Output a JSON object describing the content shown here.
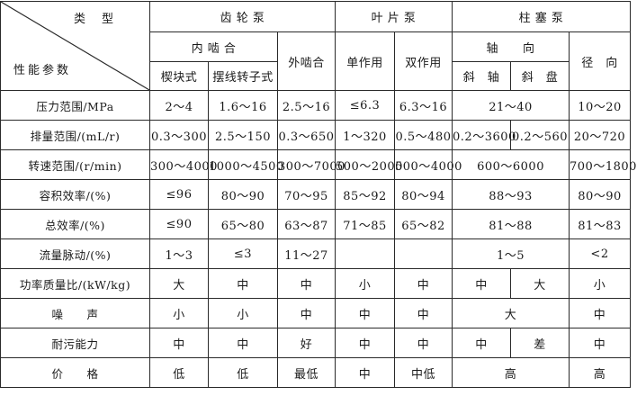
{
  "header": {
    "corner_top": "类型",
    "corner_bottom": "性能参数",
    "groups": [
      "齿 轮 泵",
      "叶 片 泵",
      "柱 塞 泵"
    ],
    "sub": {
      "internal": "内 啮 合",
      "external": "外啮合",
      "single": "单作用",
      "double": "双作用",
      "axial": "轴　　向",
      "radial": "径　向",
      "wedge": "楔块式",
      "cycloid": "摆线转子式",
      "bent_axis": "斜　轴",
      "swash_plate": "斜　盘"
    }
  },
  "rows": [
    {
      "label": "压力范围/MPa",
      "cells": [
        {
          "t": "2～4"
        },
        {
          "t": "1.6～16"
        },
        {
          "t": "2.5～16"
        },
        {
          "t": "≤6.3"
        },
        {
          "t": "6.3～16"
        },
        {
          "t": "21～40",
          "span": 2
        },
        {
          "t": "10～20"
        }
      ]
    },
    {
      "label": "排量范围/(mL/r)",
      "cells": [
        {
          "t": "0.3～300"
        },
        {
          "t": "2.5～150"
        },
        {
          "t": "0.3～650"
        },
        {
          "t": "1～320"
        },
        {
          "t": "0.5～480"
        },
        {
          "t": "0.2～3600"
        },
        {
          "t": "0.2～560"
        },
        {
          "t": "20～720"
        }
      ]
    },
    {
      "label": "转速范围/(r/min)",
      "cells": [
        {
          "t": "300～4000"
        },
        {
          "t": "1000～4500"
        },
        {
          "t": "300～7000"
        },
        {
          "t": "500～2000"
        },
        {
          "t": "500～4000"
        },
        {
          "t": "600～6000",
          "span": 2
        },
        {
          "t": "700～1800"
        }
      ]
    },
    {
      "label": "容积效率/(%)",
      "cells": [
        {
          "t": "≤96"
        },
        {
          "t": "80～90"
        },
        {
          "t": "70～95"
        },
        {
          "t": "85～92"
        },
        {
          "t": "80～94"
        },
        {
          "t": "88～93",
          "span": 2
        },
        {
          "t": "80～90"
        }
      ]
    },
    {
      "label": "总效率/(%)",
      "cells": [
        {
          "t": "≤90"
        },
        {
          "t": "65～80"
        },
        {
          "t": "63～87"
        },
        {
          "t": "71～85"
        },
        {
          "t": "65～82"
        },
        {
          "t": "81～88",
          "span": 2
        },
        {
          "t": "81～83"
        }
      ]
    },
    {
      "label": "流量脉动/(%)",
      "cells": [
        {
          "t": "1～3"
        },
        {
          "t": "≤3"
        },
        {
          "t": "11～27"
        },
        {
          "t": ""
        },
        {
          "t": ""
        },
        {
          "t": "1～5",
          "span": 2
        },
        {
          "t": "<2"
        }
      ]
    },
    {
      "label": "功率质量比/(kW/kg)",
      "cells": [
        {
          "t": "大"
        },
        {
          "t": "中"
        },
        {
          "t": "中"
        },
        {
          "t": "小"
        },
        {
          "t": "中"
        },
        {
          "t": "中"
        },
        {
          "t": "大"
        },
        {
          "t": "小"
        }
      ]
    },
    {
      "label": "噪　　声",
      "cells": [
        {
          "t": "小"
        },
        {
          "t": "小"
        },
        {
          "t": "中"
        },
        {
          "t": "中"
        },
        {
          "t": "中"
        },
        {
          "t": "大",
          "span": 2
        },
        {
          "t": "中"
        }
      ]
    },
    {
      "label": "耐污能力",
      "cells": [
        {
          "t": "中"
        },
        {
          "t": "中"
        },
        {
          "t": "好"
        },
        {
          "t": "中"
        },
        {
          "t": "中"
        },
        {
          "t": "中"
        },
        {
          "t": "差"
        },
        {
          "t": "中"
        }
      ]
    },
    {
      "label": "价　　格",
      "cells": [
        {
          "t": "低"
        },
        {
          "t": "低"
        },
        {
          "t": "最低"
        },
        {
          "t": "中"
        },
        {
          "t": "中低"
        },
        {
          "t": "高",
          "span": 2
        },
        {
          "t": "高"
        }
      ]
    }
  ]
}
